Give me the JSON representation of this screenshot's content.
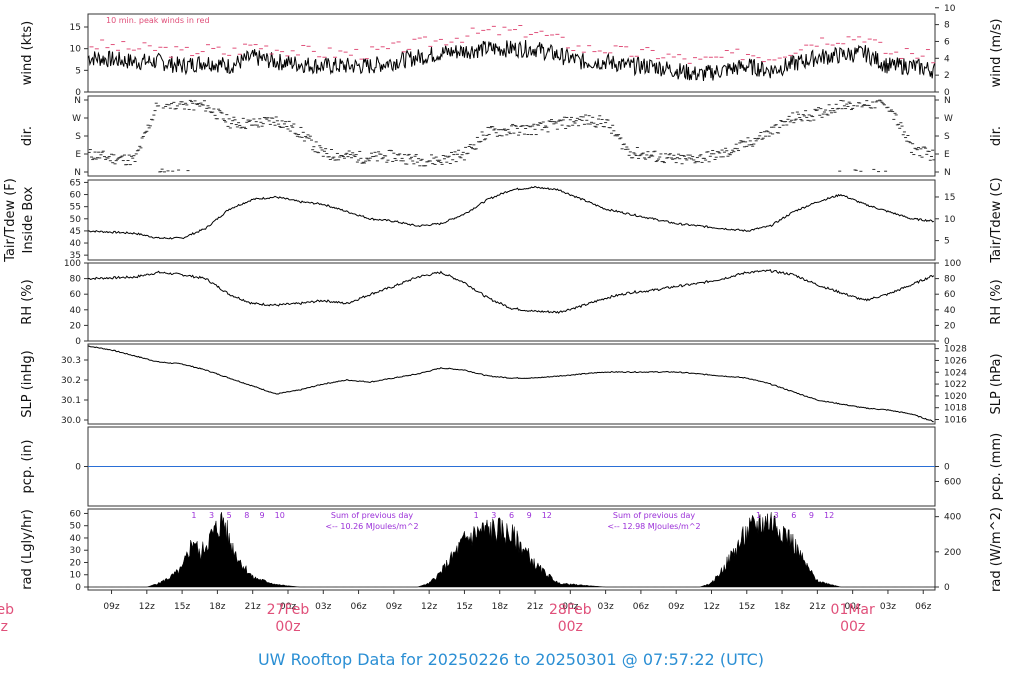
{
  "title": "UW Rooftop Data for 20250226  to  20250301 @ 07:57:22  (UTC)",
  "x_axis": {
    "time_ticks": [
      "09z",
      "12z",
      "15z",
      "18z",
      "21z",
      "00z",
      "03z",
      "06z",
      "09z",
      "12z",
      "15z",
      "18z",
      "21z",
      "00z",
      "03z",
      "06z",
      "09z",
      "12z",
      "15z",
      "18z",
      "21z",
      "00z",
      "03z",
      "06z"
    ],
    "date_labels": [
      {
        "date": "27Feb",
        "sub": "00z"
      },
      {
        "date": "28Feb",
        "sub": "00z"
      },
      {
        "date": "01Mar",
        "sub": "00z"
      }
    ],
    "cut_label": {
      "date": "eb",
      "sub": "z"
    }
  },
  "colors": {
    "axis": "#333333",
    "data": "#000000",
    "gust": "#e0507a",
    "pcp": "#2a6fd6",
    "annot": "#9b30d8",
    "date": "#e0507a",
    "title": "#2b8fd4"
  },
  "panels": {
    "wind": {
      "left_label": "wind (kts)",
      "right_label": "wind (m/s)",
      "left_ticks": [
        "0",
        "5",
        "10",
        "15"
      ],
      "right_ticks": [
        "0",
        "2",
        "4",
        "6",
        "8",
        "10"
      ],
      "note": "10 min. peak winds in red"
    },
    "dir": {
      "left_label": "dir.",
      "right_label": "dir.",
      "left_ticks": [
        "N",
        "E",
        "S",
        "W",
        "N"
      ],
      "right_ticks": [
        "N",
        "E",
        "S",
        "W",
        "N"
      ]
    },
    "temp": {
      "left_label_1": "Tair/Tdew (F)",
      "left_label_2": "Inside Box",
      "right_label": "Tair/Tdew (C)",
      "left_ticks": [
        "35",
        "40",
        "45",
        "50",
        "55",
        "60",
        "65"
      ],
      "right_ticks": [
        "5",
        "10",
        "15"
      ]
    },
    "rh": {
      "left_label": "RH (%)",
      "right_label": "RH (%)",
      "left_ticks": [
        "0",
        "20",
        "40",
        "60",
        "80",
        "100"
      ],
      "right_ticks": [
        "0",
        "20",
        "40",
        "60",
        "80",
        "100"
      ]
    },
    "slp": {
      "left_label": "SLP (inHg)",
      "right_label": "SLP (hPa)",
      "left_ticks": [
        "30.0",
        "30.1",
        "30.2",
        "30.3"
      ],
      "right_ticks": [
        "1016",
        "1018",
        "1020",
        "1022",
        "1024",
        "1026",
        "1028"
      ]
    },
    "pcp": {
      "left_label": "pcp. (in)",
      "right_label": "pcp. (mm)",
      "left_ticks": [
        "0"
      ],
      "right_ticks": [
        "0"
      ]
    },
    "rad": {
      "left_label": "rad (Lgly/hr)",
      "right_label": "rad (W/m^2)",
      "left_ticks": [
        "0",
        "10",
        "20",
        "30",
        "40",
        "50",
        "60"
      ],
      "right_ticks": [
        "0",
        "200",
        "400",
        "600"
      ],
      "day_annotations": [
        {
          "hours": [
            "1",
            "3",
            "5",
            "8",
            "9",
            "10"
          ]
        },
        {
          "hours": [
            "1",
            "3",
            "6",
            "9",
            "12"
          ]
        },
        {
          "hours": [
            "1",
            "3",
            "6",
            "9",
            "12"
          ]
        }
      ],
      "sums": [
        {
          "line1": "Sum of previous day",
          "line2": "<-- 10.26 MJoules/m^2"
        },
        {
          "line1": "Sum of previous day",
          "line2": "<-- 12.98 MJoules/m^2"
        }
      ]
    }
  },
  "chart_data": {
    "type": "line",
    "title": "UW Rooftop Data for 20250226  to  20250301 @ 07:57:22  (UTC)",
    "x_unit": "hours since 20250226 07z",
    "x_range": [
      0,
      72
    ],
    "series": [
      {
        "name": "wind (kts)",
        "ylim": [
          0,
          18
        ],
        "x": [
          0,
          4,
          6,
          8,
          10,
          12,
          14,
          16,
          20,
          24,
          26,
          28,
          30,
          34,
          38,
          42,
          44,
          46,
          48,
          50,
          52,
          56,
          58,
          62,
          66,
          68,
          70,
          72
        ],
        "y": [
          8,
          7,
          7,
          6,
          7,
          6,
          8,
          7,
          6,
          6,
          7,
          8,
          9,
          10,
          10,
          7,
          7,
          6,
          6,
          5,
          4,
          6,
          5,
          8,
          9,
          6,
          6,
          5
        ]
      },
      {
        "name": "10 min. peak winds",
        "ylim": [
          0,
          18
        ],
        "x": [
          0,
          4,
          6,
          8,
          10,
          12,
          14,
          16,
          20,
          24,
          26,
          28,
          30,
          34,
          38,
          42,
          44,
          46,
          48,
          50,
          52,
          56,
          58,
          62,
          66,
          68,
          70,
          72
        ],
        "y": [
          11,
          10,
          10,
          9,
          10,
          9,
          11,
          10,
          9,
          9,
          10,
          11,
          12,
          14,
          14,
          10,
          10,
          9,
          9,
          8,
          7,
          9,
          8,
          12,
          13,
          9,
          9,
          8
        ]
      },
      {
        "name": "dir. (deg)",
        "ylim": [
          0,
          360
        ],
        "x": [
          0,
          2,
          4,
          6,
          8,
          10,
          12,
          14,
          16,
          18,
          20,
          22,
          24,
          26,
          28,
          30,
          32,
          34,
          36,
          38,
          40,
          42,
          44,
          46,
          48,
          50,
          52,
          54,
          56,
          58,
          60,
          62,
          64,
          66,
          68,
          70,
          72
        ],
        "y": [
          90,
          70,
          60,
          350,
          340,
          330,
          250,
          240,
          260,
          200,
          90,
          80,
          70,
          80,
          60,
          60,
          90,
          200,
          210,
          215,
          240,
          260,
          250,
          100,
          80,
          60,
          70,
          90,
          140,
          200,
          270,
          290,
          340,
          345,
          340,
          120,
          80
        ]
      },
      {
        "name": "Tair (F)",
        "ylim": [
          33,
          66
        ],
        "x": [
          0,
          4,
          6,
          8,
          10,
          12,
          14,
          16,
          18,
          20,
          22,
          24,
          26,
          28,
          30,
          32,
          34,
          36,
          38,
          40,
          42,
          44,
          46,
          48,
          50,
          52,
          54,
          56,
          58,
          60,
          62,
          64,
          66,
          68,
          70,
          72
        ],
        "y": [
          45,
          44,
          42,
          42,
          46,
          54,
          58,
          59,
          57,
          56,
          53,
          50,
          49,
          47,
          48,
          52,
          58,
          62,
          63,
          62,
          58,
          54,
          52,
          50,
          48,
          47,
          46,
          45,
          47,
          53,
          57,
          60,
          56,
          53,
          50,
          49
        ]
      },
      {
        "name": "RH (%)",
        "ylim": [
          0,
          100
        ],
        "x": [
          0,
          4,
          6,
          8,
          10,
          12,
          14,
          16,
          18,
          20,
          22,
          24,
          26,
          28,
          30,
          32,
          34,
          36,
          38,
          40,
          42,
          44,
          46,
          48,
          50,
          52,
          54,
          56,
          58,
          60,
          62,
          64,
          66,
          68,
          70,
          72
        ],
        "y": [
          80,
          82,
          88,
          85,
          80,
          60,
          48,
          46,
          48,
          52,
          48,
          60,
          70,
          82,
          88,
          75,
          55,
          42,
          38,
          37,
          45,
          55,
          62,
          65,
          70,
          74,
          80,
          88,
          90,
          85,
          72,
          62,
          52,
          60,
          72,
          85
        ]
      },
      {
        "name": "SLP (inHg)",
        "ylim": [
          29.98,
          30.38
        ],
        "x": [
          0,
          2,
          4,
          6,
          8,
          10,
          12,
          14,
          16,
          18,
          20,
          22,
          24,
          26,
          28,
          30,
          32,
          34,
          36,
          38,
          40,
          42,
          44,
          46,
          48,
          50,
          52,
          54,
          56,
          58,
          60,
          62,
          64,
          66,
          68,
          70,
          72
        ],
        "y": [
          30.37,
          30.35,
          30.32,
          30.29,
          30.28,
          30.25,
          30.21,
          30.17,
          30.13,
          30.15,
          30.18,
          30.2,
          30.19,
          30.21,
          30.23,
          30.26,
          30.25,
          30.22,
          30.21,
          30.21,
          30.22,
          30.23,
          30.24,
          30.24,
          30.24,
          30.24,
          30.23,
          30.22,
          30.21,
          30.18,
          30.14,
          30.1,
          30.08,
          30.06,
          30.05,
          30.03,
          29.99
        ]
      },
      {
        "name": "pcp. (in)",
        "ylim": [
          -0.5,
          0.5
        ],
        "x": [
          0,
          72
        ],
        "y": [
          0,
          0
        ]
      },
      {
        "name": "rad (Lgly/hr)",
        "ylim": [
          0,
          62
        ],
        "x": [
          0,
          5,
          6,
          7,
          8,
          9,
          9.5,
          10,
          11,
          11.5,
          12,
          13,
          14,
          16,
          18,
          20,
          22,
          24,
          26,
          28,
          29,
          30,
          31,
          32,
          33,
          34,
          35,
          36,
          37,
          38,
          40,
          44,
          48,
          50,
          52,
          53,
          54,
          55,
          56,
          57,
          58,
          59,
          60,
          61,
          62,
          64,
          66,
          68,
          70,
          72
        ],
        "y": [
          0,
          0,
          3,
          8,
          15,
          40,
          25,
          35,
          48,
          56,
          38,
          20,
          8,
          2,
          0,
          0,
          0,
          0,
          0,
          0,
          3,
          12,
          25,
          38,
          44,
          47,
          46,
          42,
          32,
          18,
          3,
          0,
          0,
          0,
          0,
          3,
          15,
          30,
          44,
          52,
          54,
          48,
          35,
          18,
          5,
          0,
          0,
          0,
          0,
          0
        ]
      }
    ]
  }
}
